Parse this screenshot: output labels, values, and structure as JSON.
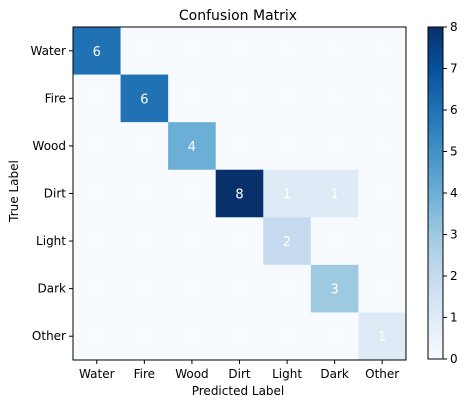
{
  "chart_data": {
    "type": "heatmap",
    "title": "Confusion Matrix",
    "xlabel": "Predicted Label",
    "ylabel": "True Label",
    "x_categories": [
      "Water",
      "Fire",
      "Wood",
      "Dirt",
      "Light",
      "Dark",
      "Other"
    ],
    "y_categories": [
      "Water",
      "Fire",
      "Wood",
      "Dirt",
      "Light",
      "Dark",
      "Other"
    ],
    "matrix": [
      [
        6,
        0,
        0,
        0,
        0,
        0,
        0
      ],
      [
        0,
        6,
        0,
        0,
        0,
        0,
        0
      ],
      [
        0,
        0,
        4,
        0,
        0,
        0,
        0
      ],
      [
        0,
        0,
        0,
        8,
        1,
        1,
        0
      ],
      [
        0,
        0,
        0,
        0,
        2,
        0,
        0
      ],
      [
        0,
        0,
        0,
        0,
        0,
        3,
        0
      ],
      [
        0,
        0,
        0,
        0,
        0,
        0,
        1
      ]
    ],
    "colormap": "Blues",
    "colorbar": {
      "range": [
        0,
        8
      ],
      "ticks": [
        "0",
        "1",
        "2",
        "3",
        "4",
        "5",
        "6",
        "7",
        "8"
      ]
    },
    "grid": false
  }
}
